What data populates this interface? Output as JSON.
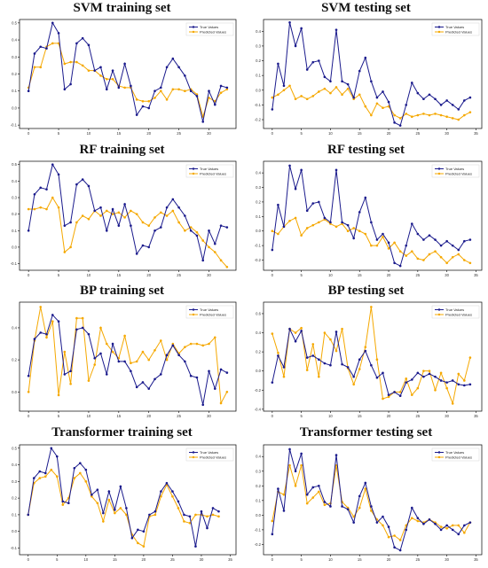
{
  "colors": {
    "true": "#1a1a8c",
    "pred": "#f5a800",
    "frame": "#000000"
  },
  "chart_data": [
    {
      "type": "line",
      "title": "SVM training set",
      "legend_position": "top-right",
      "xticks": [
        0,
        5,
        10,
        15,
        20,
        25,
        30
      ],
      "yticks": [
        -0.1,
        0.0,
        0.1,
        0.2,
        0.3,
        0.4,
        0.5
      ],
      "xlim": [
        -1.5,
        34.5
      ],
      "ylim": [
        -0.12,
        0.52
      ],
      "series": [
        {
          "name": "True Values",
          "values": [
            0.1,
            0.32,
            0.36,
            0.35,
            0.5,
            0.44,
            0.11,
            0.14,
            0.38,
            0.41,
            0.37,
            0.22,
            0.24,
            0.11,
            0.22,
            0.12,
            0.26,
            0.13,
            -0.04,
            0.01,
            0.0,
            0.1,
            0.12,
            0.24,
            0.29,
            0.24,
            0.19,
            0.1,
            0.07,
            -0.08,
            0.1,
            0.02,
            0.13,
            0.12
          ]
        },
        {
          "name": "Predicted Values",
          "values": [
            0.12,
            0.24,
            0.24,
            0.36,
            0.38,
            0.38,
            0.26,
            0.27,
            0.27,
            0.25,
            0.22,
            0.22,
            0.19,
            0.17,
            0.17,
            0.13,
            0.12,
            0.12,
            0.05,
            0.04,
            0.04,
            0.06,
            0.1,
            0.05,
            0.11,
            0.11,
            0.1,
            0.11,
            0.08,
            -0.05,
            0.06,
            0.04,
            0.09,
            0.11
          ]
        }
      ]
    },
    {
      "type": "line",
      "title": "SVM testing set",
      "legend_position": "top-right",
      "xticks": [
        0,
        5,
        10,
        15,
        20,
        25,
        30,
        35
      ],
      "yticks": [
        -0.2,
        -0.1,
        0.0,
        0.1,
        0.2,
        0.3,
        0.4
      ],
      "xlim": [
        -1.5,
        36
      ],
      "ylim": [
        -0.26,
        0.48
      ],
      "series": [
        {
          "name": "True Values",
          "values": [
            -0.13,
            0.18,
            0.03,
            0.46,
            0.3,
            0.42,
            0.14,
            0.19,
            0.2,
            0.09,
            0.06,
            0.41,
            0.06,
            0.04,
            -0.05,
            0.13,
            0.22,
            0.06,
            -0.05,
            -0.01,
            -0.08,
            -0.22,
            -0.24,
            -0.1,
            0.05,
            -0.02,
            -0.06,
            -0.03,
            -0.06,
            -0.1,
            -0.07,
            -0.1,
            -0.13,
            -0.07,
            -0.05
          ]
        },
        {
          "name": "Predicted Values",
          "values": [
            -0.05,
            -0.03,
            0.0,
            0.03,
            -0.06,
            -0.04,
            -0.06,
            -0.04,
            -0.01,
            0.01,
            -0.02,
            0.02,
            -0.03,
            0.01,
            -0.06,
            -0.03,
            -0.11,
            -0.17,
            -0.09,
            -0.12,
            -0.11,
            -0.17,
            -0.19,
            -0.16,
            -0.18,
            -0.17,
            -0.16,
            -0.17,
            -0.16,
            -0.17,
            -0.18,
            -0.19,
            -0.2,
            -0.17,
            -0.15
          ]
        }
      ]
    },
    {
      "type": "line",
      "title": "RF training set",
      "legend_position": "top-right",
      "xticks": [
        0,
        5,
        10,
        15,
        20,
        25,
        30
      ],
      "yticks": [
        -0.1,
        0.0,
        0.1,
        0.2,
        0.3,
        0.4,
        0.5
      ],
      "xlim": [
        -1.5,
        34.5
      ],
      "ylim": [
        -0.14,
        0.52
      ],
      "series": [
        {
          "name": "True Values",
          "values": [
            0.1,
            0.32,
            0.36,
            0.35,
            0.5,
            0.44,
            0.13,
            0.15,
            0.38,
            0.41,
            0.37,
            0.22,
            0.24,
            0.1,
            0.23,
            0.13,
            0.26,
            0.13,
            -0.04,
            0.01,
            0.0,
            0.1,
            0.12,
            0.24,
            0.29,
            0.24,
            0.19,
            0.1,
            0.07,
            -0.08,
            0.1,
            0.02,
            0.13,
            0.12
          ]
        },
        {
          "name": "Predicted Values",
          "values": [
            0.23,
            0.23,
            0.24,
            0.23,
            0.3,
            0.24,
            -0.03,
            0.0,
            0.15,
            0.19,
            0.17,
            0.22,
            0.19,
            0.22,
            0.2,
            0.21,
            0.18,
            0.22,
            0.2,
            0.15,
            0.13,
            0.18,
            0.21,
            0.19,
            0.22,
            0.15,
            0.1,
            0.12,
            0.09,
            0.04,
            0.0,
            -0.03,
            -0.08,
            -0.12
          ]
        }
      ]
    },
    {
      "type": "line",
      "title": "RF testing set",
      "legend_position": "top-right",
      "xticks": [
        0,
        5,
        10,
        15,
        20,
        25,
        30,
        35
      ],
      "yticks": [
        -0.2,
        -0.1,
        0.0,
        0.1,
        0.2,
        0.3,
        0.4
      ],
      "xlim": [
        -1.5,
        36
      ],
      "ylim": [
        -0.27,
        0.48
      ],
      "series": [
        {
          "name": "True Values",
          "values": [
            -0.13,
            0.18,
            0.03,
            0.45,
            0.29,
            0.42,
            0.14,
            0.19,
            0.2,
            0.09,
            0.06,
            0.42,
            0.06,
            0.04,
            -0.05,
            0.13,
            0.23,
            0.06,
            -0.06,
            -0.02,
            -0.08,
            -0.22,
            -0.24,
            -0.1,
            0.05,
            -0.02,
            -0.06,
            -0.03,
            -0.06,
            -0.1,
            -0.07,
            -0.1,
            -0.13,
            -0.07,
            -0.06
          ]
        },
        {
          "name": "Predicted Values",
          "values": [
            0.0,
            -0.02,
            0.03,
            0.07,
            0.09,
            -0.03,
            0.02,
            0.04,
            0.06,
            0.08,
            0.05,
            0.03,
            0.05,
            0.0,
            0.02,
            0.0,
            -0.02,
            -0.1,
            -0.1,
            -0.04,
            -0.12,
            -0.08,
            -0.14,
            -0.17,
            -0.14,
            -0.19,
            -0.2,
            -0.16,
            -0.14,
            -0.18,
            -0.22,
            -0.18,
            -0.16,
            -0.2,
            -0.22
          ]
        }
      ]
    },
    {
      "type": "line",
      "title": "BP training set",
      "legend_position": "top-right",
      "xticks": [
        0,
        5,
        10,
        15,
        20,
        25,
        30
      ],
      "yticks": [
        0.0,
        0.2,
        0.4
      ],
      "xlim": [
        -1.5,
        34.5
      ],
      "ylim": [
        -0.12,
        0.56
      ],
      "series": [
        {
          "name": "True Values",
          "values": [
            0.1,
            0.33,
            0.37,
            0.36,
            0.48,
            0.44,
            0.11,
            0.13,
            0.39,
            0.4,
            0.36,
            0.21,
            0.24,
            0.11,
            0.3,
            0.19,
            0.19,
            0.13,
            0.03,
            0.06,
            0.02,
            0.08,
            0.11,
            0.23,
            0.29,
            0.23,
            0.19,
            0.1,
            0.09,
            -0.08,
            0.13,
            0.02,
            0.14,
            0.12
          ]
        },
        {
          "name": "Predicted Values",
          "values": [
            0.0,
            0.32,
            0.53,
            0.34,
            0.44,
            -0.02,
            0.25,
            0.05,
            0.46,
            0.46,
            0.07,
            0.17,
            0.4,
            0.3,
            0.25,
            0.21,
            0.35,
            0.18,
            0.19,
            0.25,
            0.2,
            0.26,
            0.32,
            0.2,
            0.3,
            0.24,
            0.28,
            0.3,
            0.3,
            0.29,
            0.3,
            0.34,
            -0.07,
            0.0
          ]
        }
      ]
    },
    {
      "type": "line",
      "title": "BP testing set",
      "legend_position": "top-right",
      "xticks": [
        0,
        5,
        10,
        15,
        20,
        25,
        30,
        35
      ],
      "yticks": [
        -0.4,
        -0.2,
        0.0,
        0.2,
        0.4,
        0.6
      ],
      "xlim": [
        -1.5,
        36
      ],
      "ylim": [
        -0.42,
        0.72
      ],
      "series": [
        {
          "name": "True Values",
          "values": [
            -0.12,
            0.16,
            0.04,
            0.44,
            0.31,
            0.42,
            0.14,
            0.16,
            0.12,
            0.08,
            0.06,
            0.41,
            0.07,
            0.04,
            -0.06,
            0.12,
            0.21,
            0.06,
            -0.07,
            -0.02,
            -0.25,
            -0.22,
            -0.26,
            -0.12,
            -0.09,
            -0.02,
            -0.06,
            -0.03,
            -0.06,
            -0.1,
            -0.12,
            -0.1,
            -0.14,
            -0.15,
            -0.14
          ]
        },
        {
          "name": "Predicted Values",
          "values": [
            0.39,
            0.19,
            -0.06,
            0.44,
            0.4,
            0.45,
            0.01,
            0.28,
            -0.06,
            0.4,
            0.33,
            0.21,
            0.44,
            0.03,
            -0.14,
            0.02,
            0.25,
            0.67,
            0.12,
            -0.29,
            -0.27,
            -0.22,
            -0.22,
            -0.08,
            -0.25,
            -0.18,
            0.0,
            0.0,
            -0.2,
            -0.02,
            -0.18,
            -0.34,
            -0.03,
            -0.1,
            0.14
          ]
        }
      ]
    },
    {
      "type": "line",
      "title": "Transformer training set",
      "legend_position": "top-right",
      "xticks": [
        0,
        5,
        10,
        15,
        20,
        25,
        30,
        35
      ],
      "yticks": [
        -0.1,
        0.0,
        0.1,
        0.2,
        0.3,
        0.4,
        0.5
      ],
      "xlim": [
        -1.5,
        36
      ],
      "ylim": [
        -0.14,
        0.52
      ],
      "series": [
        {
          "name": "True Values",
          "values": [
            0.1,
            0.32,
            0.36,
            0.35,
            0.5,
            0.45,
            0.18,
            0.17,
            0.38,
            0.41,
            0.37,
            0.22,
            0.25,
            0.11,
            0.24,
            0.13,
            0.27,
            0.14,
            -0.04,
            0.01,
            0.0,
            0.1,
            0.12,
            0.24,
            0.29,
            0.24,
            0.18,
            0.1,
            0.09,
            -0.09,
            0.12,
            0.02,
            0.14,
            0.12
          ]
        },
        {
          "name": "Predicted Values",
          "values": [
            0.1,
            0.29,
            0.32,
            0.33,
            0.37,
            0.33,
            0.16,
            0.2,
            0.32,
            0.35,
            0.3,
            0.21,
            0.17,
            0.06,
            0.19,
            0.11,
            0.14,
            0.1,
            -0.02,
            -0.07,
            -0.09,
            0.09,
            0.1,
            0.21,
            0.28,
            0.21,
            0.14,
            0.06,
            0.05,
            0.1,
            0.1,
            0.09,
            0.1,
            0.09
          ]
        }
      ]
    },
    {
      "type": "line",
      "title": "Transformer testing set",
      "legend_position": "top-right",
      "xticks": [
        0,
        5,
        10,
        15,
        20,
        25,
        30,
        35
      ],
      "yticks": [
        -0.2,
        -0.1,
        0.0,
        0.1,
        0.2,
        0.3,
        0.4
      ],
      "xlim": [
        -1.5,
        36
      ],
      "ylim": [
        -0.27,
        0.48
      ],
      "series": [
        {
          "name": "True Values",
          "values": [
            -0.13,
            0.18,
            0.03,
            0.45,
            0.3,
            0.42,
            0.14,
            0.19,
            0.2,
            0.09,
            0.06,
            0.41,
            0.06,
            0.04,
            -0.05,
            0.13,
            0.22,
            0.06,
            -0.05,
            -0.01,
            -0.08,
            -0.22,
            -0.24,
            -0.1,
            0.05,
            -0.02,
            -0.06,
            -0.03,
            -0.06,
            -0.1,
            -0.07,
            -0.1,
            -0.13,
            -0.07,
            -0.05
          ]
        },
        {
          "name": "Predicted Values",
          "values": [
            -0.04,
            0.16,
            0.14,
            0.34,
            0.2,
            0.34,
            0.08,
            0.12,
            0.16,
            0.07,
            0.08,
            0.34,
            0.09,
            0.05,
            -0.01,
            0.05,
            0.18,
            0.03,
            -0.03,
            -0.07,
            -0.15,
            -0.14,
            -0.17,
            -0.07,
            -0.02,
            -0.04,
            -0.05,
            -0.03,
            -0.05,
            -0.08,
            -0.09,
            -0.07,
            -0.07,
            -0.12,
            -0.05
          ]
        }
      ]
    }
  ]
}
